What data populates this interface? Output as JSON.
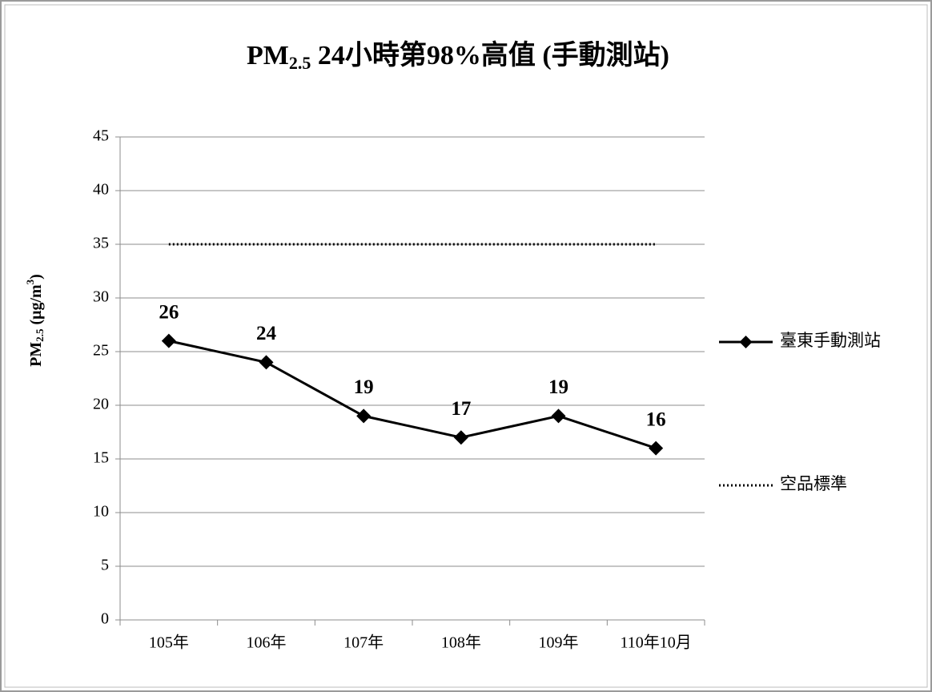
{
  "chart_data": {
    "type": "line",
    "title": [
      "PM",
      "2.5",
      " 24小時第98%高值 (手動測站)"
    ],
    "y_label": [
      "PM",
      "2.5",
      " (μg/m",
      "3",
      ")"
    ],
    "categories": [
      "105年",
      "106年",
      "107年",
      "108年",
      "109年",
      "110年10月"
    ],
    "series": [
      {
        "name": "臺東手動測站",
        "color": "#000000",
        "values": [
          26,
          24,
          19,
          17,
          19,
          16
        ],
        "marker": "diamond",
        "data_labels": true
      },
      {
        "name": "空品標準",
        "color": "#000000",
        "values": [
          35,
          35,
          35,
          35,
          35,
          35
        ],
        "dash": "dotted"
      }
    ],
    "ylim": [
      0,
      45
    ],
    "yticks": [
      0,
      5,
      10,
      15,
      20,
      25,
      30,
      35,
      40,
      45
    ],
    "grid": true,
    "legend": "right"
  }
}
